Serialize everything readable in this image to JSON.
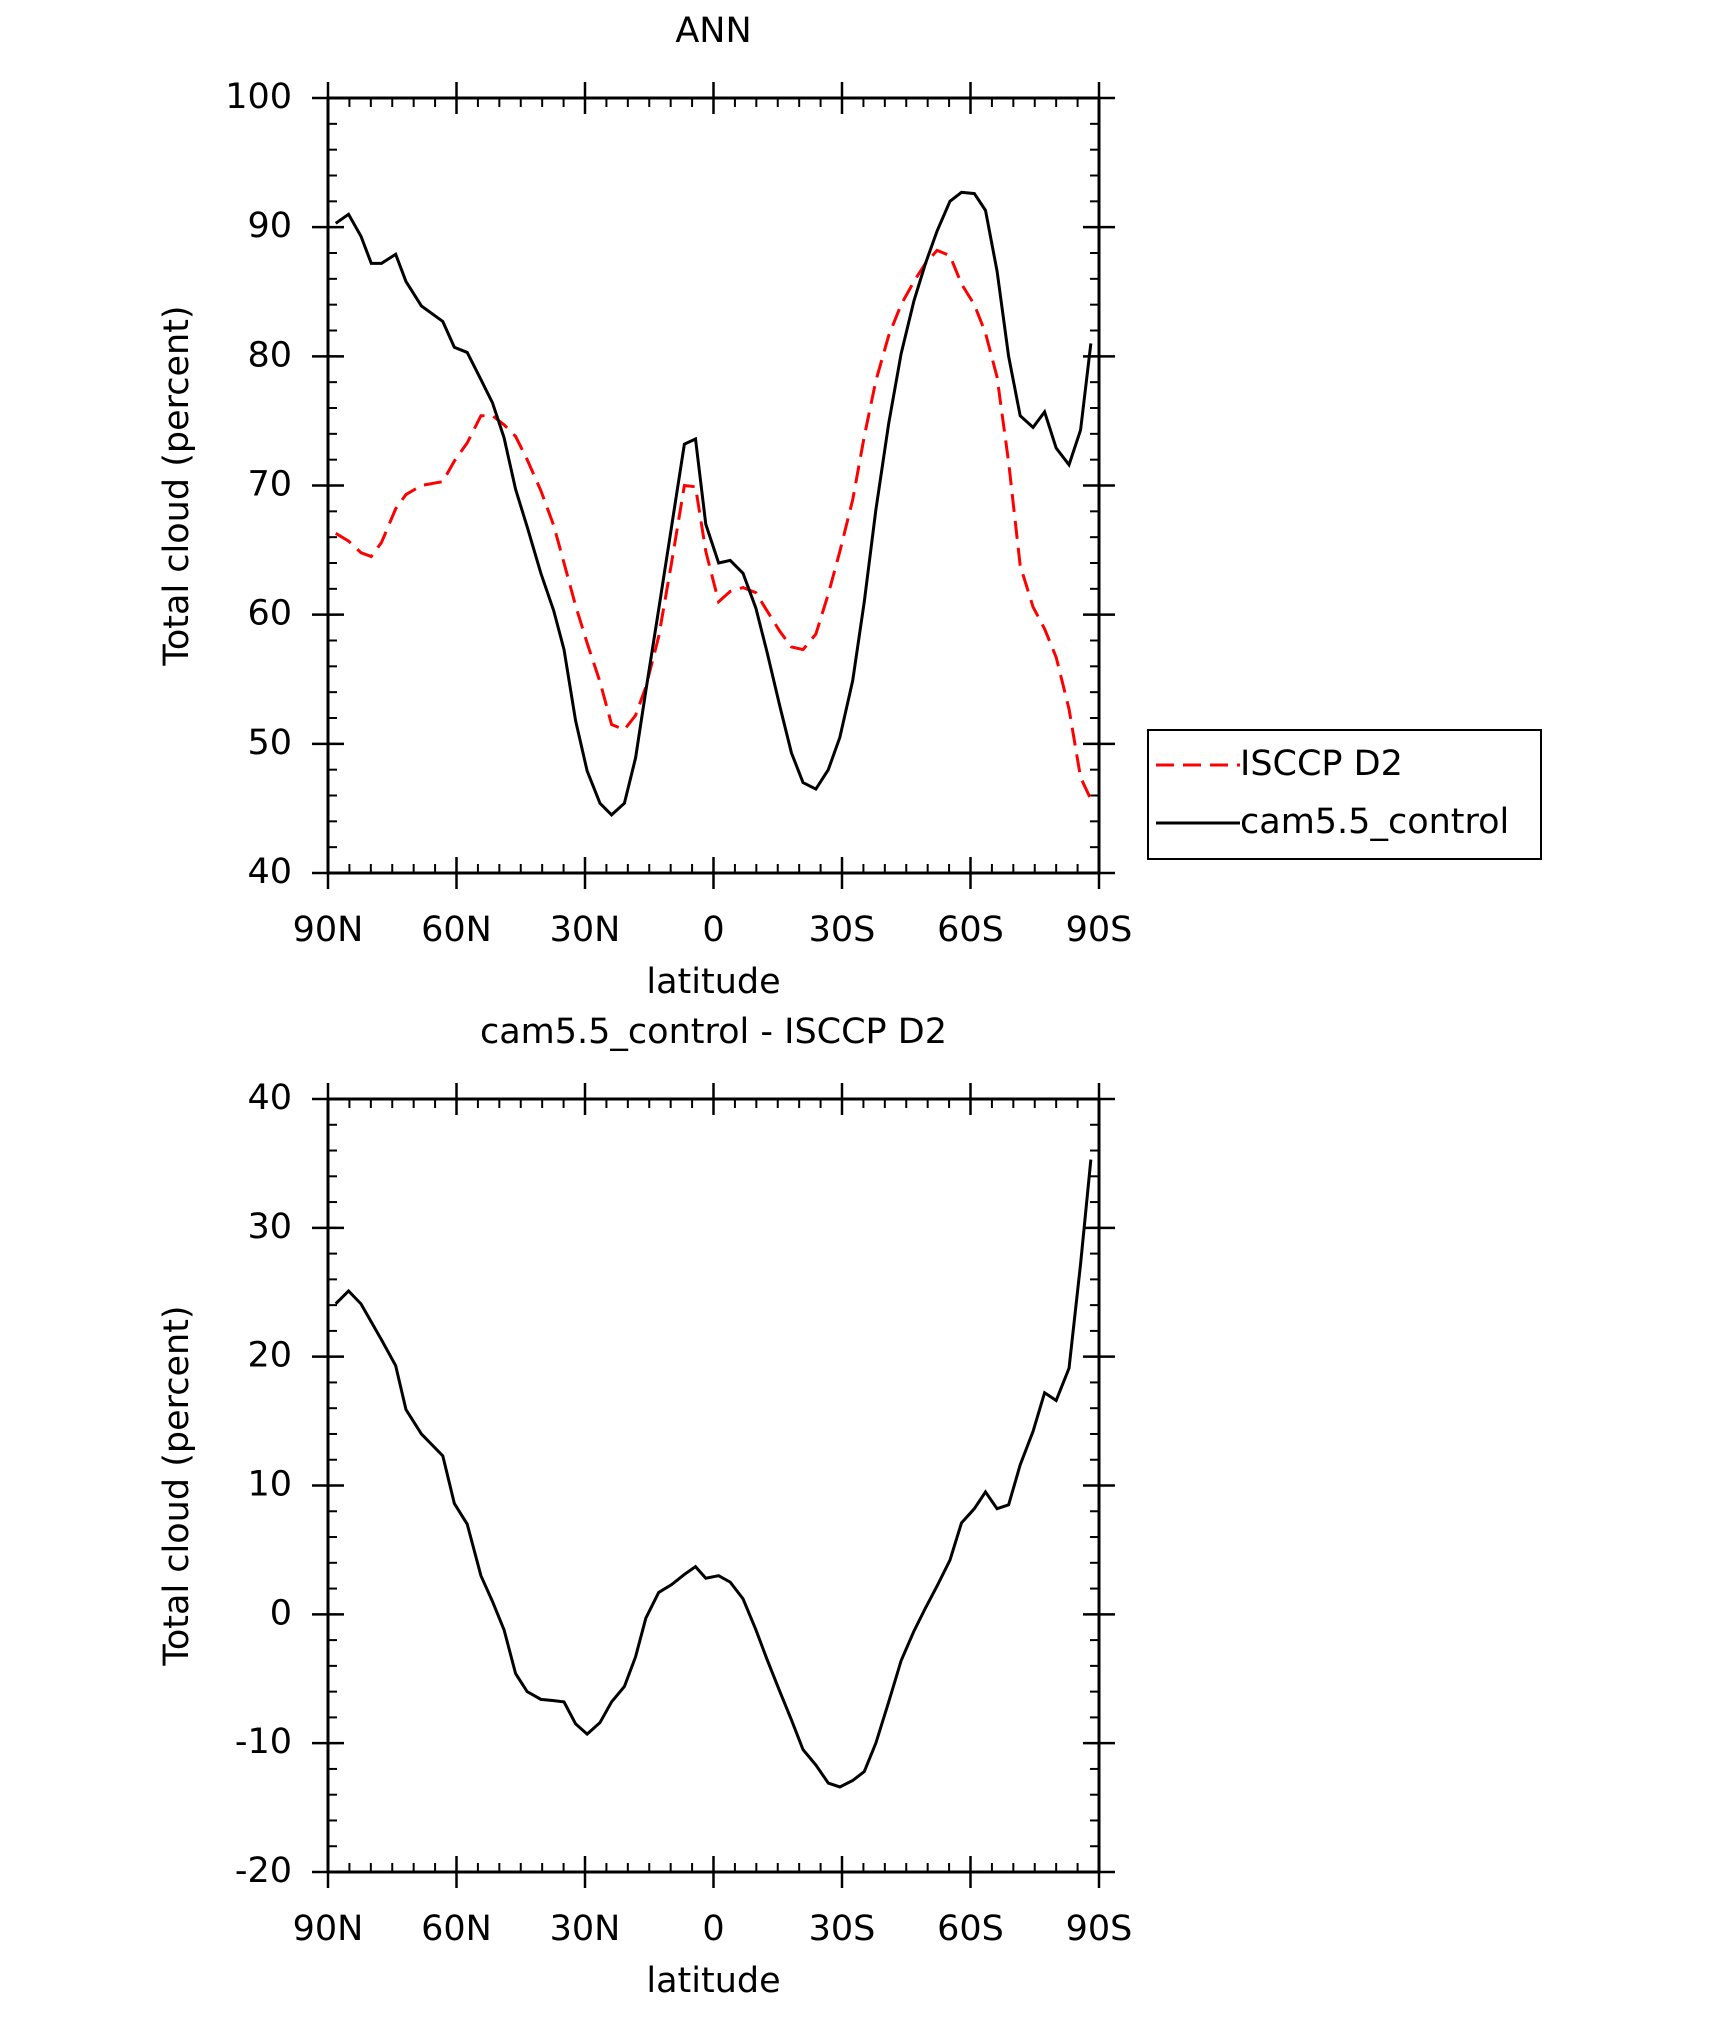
{
  "chart_data": [
    {
      "type": "line",
      "title": "ANN",
      "xlabel": "latitude",
      "ylabel": "Total cloud (percent)",
      "x": [
        88.2,
        85.2,
        82.3,
        79.9,
        77.5,
        74.2,
        71.8,
        68.2,
        63.2,
        60.5,
        57.5,
        54.3,
        51.6,
        48.9,
        46.2,
        43.5,
        40.3,
        37.3,
        34.9,
        32.2,
        29.5,
        26.5,
        23.8,
        20.8,
        18.2,
        15.8,
        12.8,
        9.8,
        6.8,
        4.2,
        1.8,
        -1.2,
        -3.9,
        -6.9,
        -9.9,
        -12.5,
        -15.5,
        -18.2,
        -20.9,
        -23.9,
        -26.8,
        -29.5,
        -32.5,
        -35.2,
        -37.9,
        -40.9,
        -43.8,
        -46.8,
        -49.5,
        -52.2,
        -55.2,
        -57.9,
        -60.9,
        -63.5,
        -66.2,
        -68.9,
        -71.6,
        -74.6,
        -77.3,
        -80.0,
        -83.0,
        -85.7,
        -88.1
      ],
      "series": [
        {
          "name": "ISCCP D2",
          "color": "#ff0000",
          "dash": true,
          "values": [
            66.3,
            65.7,
            64.8,
            64.5,
            65.6,
            68.2,
            69.3,
            70.0,
            70.3,
            71.9,
            73.3,
            75.4,
            75.4,
            74.7,
            73.8,
            72.0,
            69.6,
            66.9,
            64.0,
            60.7,
            57.8,
            54.8,
            51.5,
            51.1,
            52.2,
            54.4,
            58.3,
            64.0,
            70.0,
            69.9,
            64.9,
            61.0,
            61.8,
            62.1,
            61.7,
            60.3,
            58.7,
            57.5,
            57.3,
            58.5,
            61.6,
            64.9,
            68.9,
            73.8,
            78.1,
            81.6,
            84.0,
            85.8,
            87.2,
            88.2,
            87.8,
            85.6,
            84.0,
            81.8,
            78.4,
            71.8,
            63.8,
            60.6,
            58.9,
            56.7,
            52.7,
            47.4,
            45.7
          ]
        },
        {
          "name": "cam5.5_control",
          "color": "#000000",
          "dash": false,
          "values": [
            90.3,
            91.0,
            89.3,
            87.2,
            87.2,
            87.9,
            85.8,
            83.9,
            82.7,
            80.7,
            80.3,
            78.2,
            76.4,
            73.7,
            69.7,
            66.8,
            63.2,
            60.3,
            57.3,
            51.8,
            47.9,
            45.4,
            44.5,
            45.4,
            48.9,
            54.1,
            60.4,
            66.8,
            73.2,
            73.6,
            67.0,
            64.0,
            64.2,
            63.2,
            60.5,
            57.1,
            52.9,
            49.3,
            47.0,
            46.5,
            48.0,
            50.5,
            54.9,
            61.0,
            68.1,
            74.8,
            80.2,
            84.3,
            87.2,
            89.7,
            92.0,
            92.7,
            92.6,
            91.3,
            86.6,
            80.0,
            75.4,
            74.5,
            75.7,
            72.9,
            71.6,
            74.3,
            81.0
          ]
        }
      ],
      "xlim": [
        90,
        -90
      ],
      "xticks": [
        {
          "value": 90,
          "label": "90N"
        },
        {
          "value": 60,
          "label": "60N"
        },
        {
          "value": 30,
          "label": "30N"
        },
        0,
        {
          "value": -30,
          "label": "30S"
        },
        {
          "value": -60,
          "label": "60S"
        },
        {
          "value": -90,
          "label": "90S"
        }
      ],
      "ylim": [
        40,
        100
      ],
      "yticks": [
        40,
        50,
        60,
        70,
        80,
        90,
        100
      ],
      "legend": "right"
    },
    {
      "type": "line",
      "title": "cam5.5_control - ISCCP D2",
      "xlabel": "latitude",
      "ylabel": "Total cloud (percent)",
      "x": [
        88.2,
        85.2,
        82.3,
        79.9,
        77.5,
        74.2,
        71.8,
        68.2,
        63.2,
        60.5,
        57.5,
        54.3,
        51.6,
        48.9,
        46.2,
        43.5,
        40.3,
        37.3,
        34.9,
        32.2,
        29.5,
        26.5,
        23.8,
        20.8,
        18.2,
        15.8,
        12.8,
        9.8,
        6.8,
        4.2,
        1.8,
        -1.2,
        -3.9,
        -6.9,
        -9.9,
        -12.5,
        -15.5,
        -18.2,
        -20.9,
        -23.9,
        -26.8,
        -29.5,
        -32.5,
        -35.2,
        -37.9,
        -40.9,
        -43.8,
        -46.8,
        -49.5,
        -52.2,
        -55.2,
        -57.9,
        -60.9,
        -63.5,
        -66.2,
        -68.9,
        -71.6,
        -74.6,
        -77.3,
        -80.0,
        -83.0,
        -85.7,
        -88.1
      ],
      "series": [
        {
          "color": "#000000",
          "dash": false,
          "values": [
            24.1,
            25.1,
            24.1,
            22.7,
            21.3,
            19.3,
            15.9,
            14.0,
            12.3,
            8.6,
            7.0,
            3.0,
            1.0,
            -1.2,
            -4.6,
            -6.0,
            -6.6,
            -6.7,
            -6.8,
            -8.5,
            -9.3,
            -8.4,
            -6.8,
            -5.6,
            -3.3,
            -0.3,
            1.7,
            2.3,
            3.1,
            3.7,
            2.8,
            3.0,
            2.5,
            1.2,
            -1.2,
            -3.5,
            -6.0,
            -8.2,
            -10.5,
            -11.7,
            -13.1,
            -13.4,
            -12.9,
            -12.2,
            -10.0,
            -6.8,
            -3.6,
            -1.3,
            0.5,
            2.2,
            4.2,
            7.1,
            8.2,
            9.5,
            8.2,
            8.5,
            11.6,
            14.2,
            17.2,
            16.6,
            19.1,
            27.2,
            35.3
          ]
        }
      ],
      "xlim": [
        90,
        -90
      ],
      "xticks": [
        {
          "value": 90,
          "label": "90N"
        },
        {
          "value": 60,
          "label": "60N"
        },
        {
          "value": 30,
          "label": "30N"
        },
        0,
        {
          "value": -30,
          "label": "30S"
        },
        {
          "value": -60,
          "label": "60S"
        },
        {
          "value": -90,
          "label": "90S"
        }
      ],
      "ylim": [
        -20,
        40
      ],
      "yticks": [
        -20,
        -10,
        0,
        10,
        20,
        30,
        40
      ]
    }
  ]
}
